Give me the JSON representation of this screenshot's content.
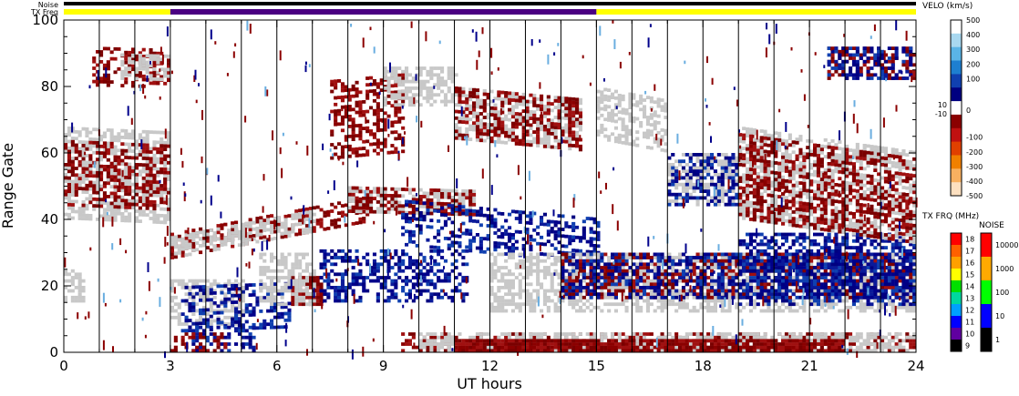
{
  "colors": {
    "noise_bar": "#000000",
    "txfreq_low": "#ffff00",
    "txfreq_high": "#4b0082",
    "ground_scatter": "#c8c8c8",
    "velocity_negative": "#8b0000",
    "velocity_positive": "#00008b"
  },
  "chart_data": {
    "type": "heatmap",
    "title": "",
    "xlabel": "UT hours",
    "ylabel": "Range Gate",
    "xlim": [
      0,
      24
    ],
    "ylim": [
      0,
      100
    ],
    "x_ticks": [
      "0",
      "3",
      "6",
      "9",
      "12",
      "15",
      "18",
      "21",
      "24"
    ],
    "y_ticks": [
      "0",
      "20",
      "40",
      "60",
      "80",
      "100"
    ],
    "bar_labels": {
      "noise": "Noise",
      "txfreq": "TX Freq"
    },
    "txfreq_segments": [
      {
        "start": 0,
        "end": 3,
        "level": "low"
      },
      {
        "start": 3,
        "end": 15,
        "level": "high"
      },
      {
        "start": 15,
        "end": 24,
        "level": "low"
      }
    ],
    "scans_x": [
      0,
      1,
      2,
      3,
      4,
      5,
      6,
      7,
      8,
      9,
      10,
      11,
      12,
      13,
      14,
      15,
      16,
      17,
      18,
      19,
      20,
      21,
      22,
      23,
      24
    ],
    "velocity_colorbar": {
      "title": "VELO (km/s)",
      "labels": [
        "500",
        "400",
        "300",
        "200",
        "100",
        "10",
        "0",
        "-10",
        "-100",
        "-200",
        "-300",
        "-400",
        "-500"
      ],
      "colors": [
        "#ffffff",
        "#a8d8f0",
        "#5ab4e6",
        "#1e7fd0",
        "#1040b0",
        "#000080",
        "#ffffff",
        "#8b0000",
        "#c01010",
        "#e04000",
        "#f08000",
        "#f8b060",
        "#fde0c0"
      ]
    },
    "txfreq_colorbar": {
      "title": "TX FRQ (MHz)",
      "labels": [
        "18",
        "17",
        "16",
        "15",
        "14",
        "13",
        "12",
        "11",
        "10",
        "9"
      ],
      "colors": [
        "#ff0000",
        "#ff6000",
        "#ffa000",
        "#ffff00",
        "#00e000",
        "#00d8a0",
        "#00a0ff",
        "#0000ff",
        "#6000a0",
        "#000000"
      ]
    },
    "noise_colorbar": {
      "title": "NOISE",
      "labels": [
        "10000",
        "1000",
        "100",
        "10",
        "1"
      ],
      "colors": [
        "#ff0000",
        "#ffaa00",
        "#00ff00",
        "#0000ff",
        "#000000"
      ]
    },
    "regions": [
      {
        "x0": 0.0,
        "x1": 3.0,
        "y0": 40,
        "y1": 68,
        "kind": "gs",
        "slope": -0.5
      },
      {
        "x0": 0.0,
        "x1": 3.0,
        "y0": 44,
        "y1": 64,
        "kind": "neg",
        "slope": -0.5
      },
      {
        "x0": 0.8,
        "x1": 3.0,
        "y0": 80,
        "y1": 92,
        "kind": "neg",
        "slope": -0.3
      },
      {
        "x0": 1.6,
        "x1": 3.0,
        "y0": 82,
        "y1": 90,
        "kind": "gs",
        "slope": -0.3
      },
      {
        "x0": 0.0,
        "x1": 0.6,
        "y0": 15,
        "y1": 25,
        "kind": "gs",
        "slope": 0
      },
      {
        "x0": 3.0,
        "x1": 5.0,
        "y0": 8,
        "y1": 22,
        "kind": "gs",
        "slope": 0
      },
      {
        "x0": 3.3,
        "x1": 6.3,
        "y0": 6,
        "y1": 20,
        "kind": "pos",
        "slope": 0.4
      },
      {
        "x0": 3.6,
        "x1": 5.3,
        "y0": 0,
        "y1": 8,
        "kind": "pos",
        "slope": 0
      },
      {
        "x0": 3.0,
        "x1": 4.5,
        "y0": 0,
        "y1": 6,
        "kind": "neg",
        "slope": 0
      },
      {
        "x0": 6.4,
        "x1": 7.2,
        "y0": 14,
        "y1": 23,
        "kind": "solidneg",
        "slope": 0
      },
      {
        "x0": 7.2,
        "x1": 11.3,
        "y0": 15,
        "y1": 31,
        "kind": "pos",
        "slope": 0
      },
      {
        "x0": 5.5,
        "x1": 7.0,
        "y0": 14,
        "y1": 30,
        "kind": "gs",
        "slope": 0
      },
      {
        "x0": 3.0,
        "x1": 8.5,
        "y0": 28,
        "y1": 36,
        "kind": "neg",
        "slope": 2.0
      },
      {
        "x0": 3.0,
        "x1": 7.0,
        "y0": 28,
        "y1": 35,
        "kind": "gs",
        "slope": 2.0
      },
      {
        "x0": 7.5,
        "x1": 9.5,
        "y0": 58,
        "y1": 82,
        "kind": "neg",
        "slope": 1.0
      },
      {
        "x0": 8.0,
        "x1": 11.5,
        "y0": 42,
        "y1": 50,
        "kind": "gs",
        "slope": -0.3
      },
      {
        "x0": 8.0,
        "x1": 11.5,
        "y0": 42,
        "y1": 50,
        "kind": "neg",
        "slope": -0.3
      },
      {
        "x0": 9.5,
        "x1": 15.0,
        "y0": 32,
        "y1": 46,
        "kind": "pos",
        "slope": -1.0
      },
      {
        "x0": 9.0,
        "x1": 11.0,
        "y0": 74,
        "y1": 86,
        "kind": "gs",
        "slope": 0
      },
      {
        "x0": 11.0,
        "x1": 14.5,
        "y0": 64,
        "y1": 80,
        "kind": "gs",
        "slope": -1.0
      },
      {
        "x0": 11.0,
        "x1": 14.5,
        "y0": 64,
        "y1": 80,
        "kind": "neg",
        "slope": -1.0
      },
      {
        "x0": 12.0,
        "x1": 24.0,
        "y0": 12,
        "y1": 30,
        "kind": "gs",
        "slope": 0
      },
      {
        "x0": 14.0,
        "x1": 24.0,
        "y0": 16,
        "y1": 30,
        "kind": "neg",
        "slope": 0
      },
      {
        "x0": 14.0,
        "x1": 24.0,
        "y0": 16,
        "y1": 30,
        "kind": "pos",
        "slope": 0
      },
      {
        "x0": 19.0,
        "x1": 24.0,
        "y0": 14,
        "y1": 36,
        "kind": "pos",
        "slope": 0
      },
      {
        "x0": 15.0,
        "x1": 17.0,
        "y0": 64,
        "y1": 80,
        "kind": "gs",
        "slope": -2
      },
      {
        "x0": 17.0,
        "x1": 19.0,
        "y0": 44,
        "y1": 60,
        "kind": "gs",
        "slope": 0
      },
      {
        "x0": 17.0,
        "x1": 19.0,
        "y0": 44,
        "y1": 60,
        "kind": "pos",
        "slope": 0
      },
      {
        "x0": 19.0,
        "x1": 24.0,
        "y0": 40,
        "y1": 68,
        "kind": "gs",
        "slope": -1.5
      },
      {
        "x0": 19.0,
        "x1": 24.0,
        "y0": 40,
        "y1": 66,
        "kind": "neg",
        "slope": -1.5
      },
      {
        "x0": 21.5,
        "x1": 24.0,
        "y0": 82,
        "y1": 92,
        "kind": "neg",
        "slope": 0
      },
      {
        "x0": 21.5,
        "x1": 24.0,
        "y0": 82,
        "y1": 92,
        "kind": "pos",
        "slope": 0
      },
      {
        "x0": 9.5,
        "x1": 24.0,
        "y0": 0,
        "y1": 6,
        "kind": "neg",
        "slope": 0
      },
      {
        "x0": 10.0,
        "x1": 24.0,
        "y0": 0,
        "y1": 6,
        "kind": "gs",
        "slope": 0
      },
      {
        "x0": 11.0,
        "x1": 22.0,
        "y0": 0,
        "y1": 4,
        "kind": "solidneg",
        "slope": 0
      }
    ]
  }
}
